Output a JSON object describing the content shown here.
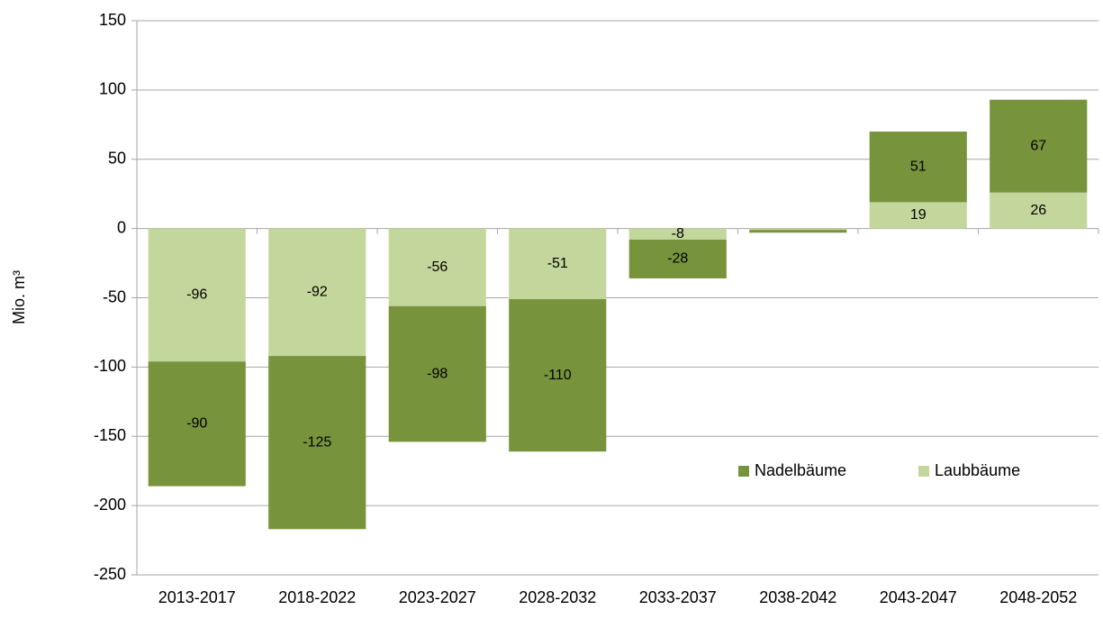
{
  "chart_data": {
    "type": "stacked_bar",
    "y_label": "Mio. m³",
    "categories": [
      "2013-2017",
      "2018-2022",
      "2023-2027",
      "2028-2032",
      "2033-2037",
      "2038-2042",
      "2043-2047",
      "2048-2052"
    ],
    "series": [
      {
        "name": "Nadelbäume",
        "color": "#77933c",
        "values": [
          -90,
          -125,
          -98,
          -110,
          -28,
          -2,
          51,
          67
        ]
      },
      {
        "name": "Laubbäume",
        "color": "#c3d69b",
        "values": [
          -96,
          -92,
          -56,
          -51,
          -8,
          -1,
          19,
          26
        ]
      }
    ],
    "ylim": [
      -250,
      150
    ],
    "yticks": [
      -250,
      -200,
      -150,
      -100,
      -50,
      0,
      50,
      100,
      150
    ],
    "grid": true,
    "legend": "lower right"
  }
}
